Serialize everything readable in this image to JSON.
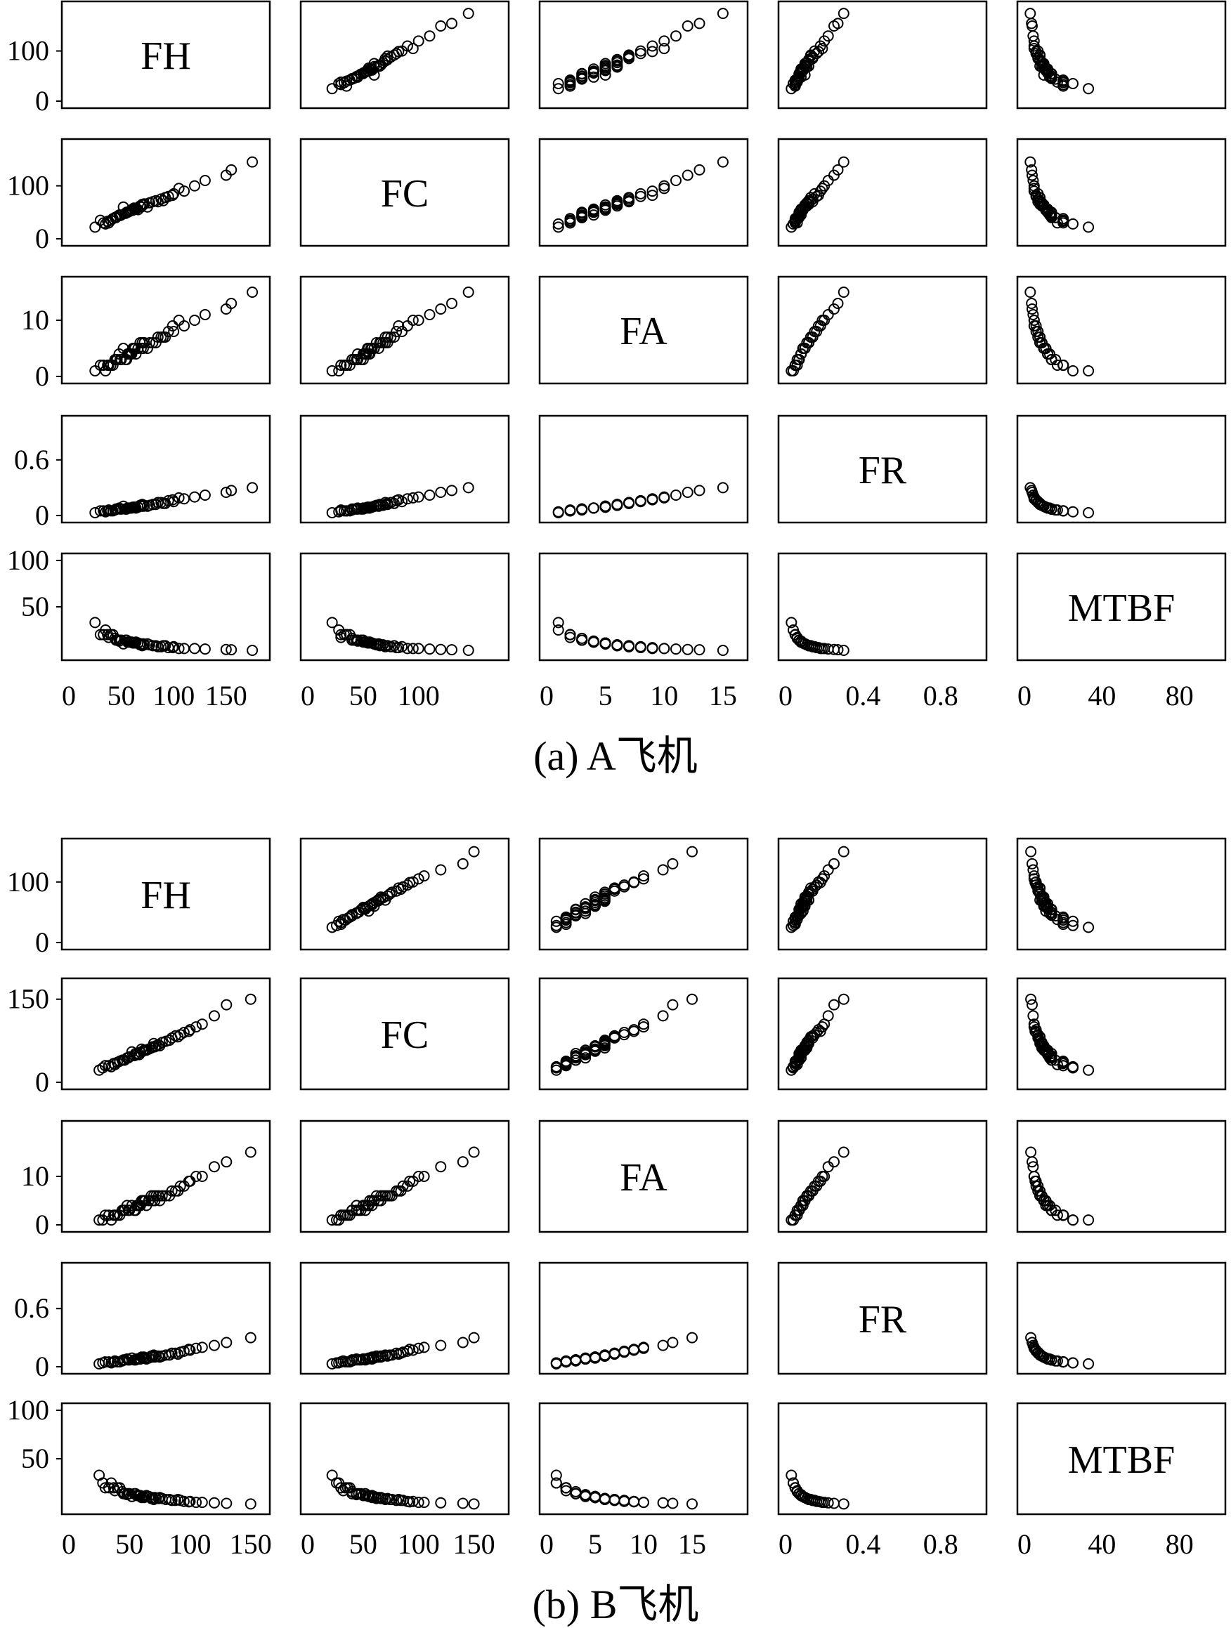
{
  "variables": [
    "FH",
    "FC",
    "FA",
    "FR",
    "MTBF"
  ],
  "panels": [
    {
      "caption": "(a) A飞机",
      "y_ticks": [
        [
          "0",
          "100"
        ],
        [
          "0",
          "100"
        ],
        [
          "0",
          "10"
        ],
        [
          "0",
          "0.6"
        ],
        [
          "50",
          "100"
        ]
      ],
      "x_ticks": [
        [
          "0",
          "50",
          "100",
          "150"
        ],
        [
          "0",
          "50",
          "100"
        ],
        [
          "0",
          "5",
          "10",
          "15"
        ],
        [
          "0",
          "0.4",
          "0.8"
        ],
        [
          "0",
          "40",
          "80"
        ]
      ]
    },
    {
      "caption": "(b) B飞机",
      "y_ticks": [
        [
          "0",
          "100"
        ],
        [
          "0",
          "150"
        ],
        [
          "0",
          "10"
        ],
        [
          "0",
          "0.6"
        ],
        [
          "50",
          "100"
        ]
      ],
      "x_ticks": [
        [
          "0",
          "50",
          "100",
          "150"
        ],
        [
          "0",
          "50",
          "100",
          "150"
        ],
        [
          "0",
          "5",
          "10",
          "15"
        ],
        [
          "0",
          "0.4",
          "0.8"
        ],
        [
          "0",
          "40",
          "80"
        ]
      ]
    }
  ],
  "chart_data": [
    {
      "type": "scatter",
      "subtype": "scatter-matrix",
      "variables": [
        "FH",
        "FC",
        "FA",
        "FR",
        "MTBF"
      ],
      "ranges": {
        "FH": [
          0,
          185
        ],
        "FC": [
          0,
          175
        ],
        "FA": [
          0,
          16.5
        ],
        "FR": [
          0,
          1.0
        ],
        "MTBF": [
          0,
          100
        ]
      },
      "tick_values": {
        "FH": [
          0,
          50,
          100,
          150
        ],
        "FC": [
          0,
          50,
          100
        ],
        "FA": [
          0,
          5,
          10,
          15
        ],
        "FR": [
          0,
          0.4,
          0.8
        ],
        "MTBF": [
          0,
          40,
          80
        ]
      },
      "y_tick_values": {
        "FH": [
          0,
          100
        ],
        "FC": [
          0,
          100
        ],
        "FA": [
          0,
          10
        ],
        "FR": [
          0,
          0.6
        ],
        "MTBF": [
          50,
          100
        ]
      },
      "approx_points": {
        "FH": [
          30,
          45,
          52,
          60,
          38,
          70,
          85,
          55,
          62,
          48,
          95,
          110,
          75,
          68,
          42,
          58,
          66,
          90,
          120,
          150,
          175,
          35,
          50,
          64,
          72,
          80,
          100,
          56,
          46,
          40,
          88,
          92,
          54,
          61,
          69,
          77,
          33,
          44,
          59,
          130,
          155,
          25,
          71,
          83,
          49,
          57,
          63,
          37,
          99,
          105
        ],
        "FC": [
          35,
          40,
          60,
          55,
          30,
          65,
          70,
          50,
          58,
          45,
          80,
          90,
          60,
          62,
          38,
          52,
          55,
          72,
          100,
          120,
          145,
          28,
          45,
          56,
          66,
          70,
          85,
          50,
          42,
          35,
          75,
          78,
          48,
          54,
          60,
          68,
          30,
          40,
          53,
          110,
          130,
          22,
          64,
          72,
          44,
          51,
          57,
          33,
          82,
          95
        ],
        "FA": [
          2,
          3,
          5,
          4,
          2,
          6,
          7,
          3,
          5,
          4,
          8,
          9,
          5,
          6,
          2,
          4,
          5,
          7,
          10,
          12,
          15,
          1,
          3,
          4,
          6,
          6,
          8,
          4,
          3,
          2,
          7,
          7,
          3,
          5,
          5,
          6,
          2,
          3,
          4,
          11,
          13,
          1,
          5,
          6,
          3,
          4,
          5,
          2,
          9,
          10
        ],
        "FR": [
          0.05,
          0.07,
          0.1,
          0.08,
          0.06,
          0.12,
          0.14,
          0.07,
          0.09,
          0.08,
          0.16,
          0.18,
          0.1,
          0.11,
          0.05,
          0.08,
          0.09,
          0.13,
          0.2,
          0.25,
          0.3,
          0.04,
          0.07,
          0.08,
          0.11,
          0.12,
          0.15,
          0.08,
          0.07,
          0.05,
          0.14,
          0.13,
          0.07,
          0.09,
          0.1,
          0.11,
          0.05,
          0.06,
          0.08,
          0.22,
          0.27,
          0.03,
          0.1,
          0.12,
          0.07,
          0.08,
          0.09,
          0.05,
          0.17,
          0.19
        ],
        "MTBF": [
          20,
          14,
          10,
          12,
          17,
          8,
          7,
          14,
          11,
          13,
          6,
          5,
          10,
          9,
          20,
          12,
          11,
          8,
          5,
          4,
          3,
          25,
          14,
          12,
          9,
          8,
          7,
          12,
          14,
          20,
          7,
          8,
          14,
          11,
          10,
          9,
          20,
          16,
          12,
          4.5,
          3.7,
          33,
          10,
          8,
          14,
          12,
          11,
          20,
          6,
          5
        ]
      }
    },
    {
      "type": "scatter",
      "subtype": "scatter-matrix",
      "variables": [
        "FH",
        "FC",
        "FA",
        "FR",
        "MTBF"
      ],
      "ranges": {
        "FH": [
          0,
          160
        ],
        "FC": [
          0,
          175
        ],
        "FA": [
          0,
          20
        ],
        "FR": [
          0,
          1.0
        ],
        "MTBF": [
          0,
          100
        ]
      },
      "tick_values": {
        "FH": [
          0,
          50,
          100,
          150
        ],
        "FC": [
          0,
          50,
          100,
          150
        ],
        "FA": [
          0,
          5,
          10,
          15
        ],
        "FR": [
          0,
          0.4,
          0.8
        ],
        "MTBF": [
          0,
          40,
          80
        ]
      },
      "y_tick_values": {
        "FH": [
          0,
          100
        ],
        "FC": [
          0,
          150
        ],
        "FA": [
          0,
          10
        ],
        "FR": [
          0,
          0.6
        ],
        "MTBF": [
          50,
          100
        ]
      },
      "approx_points": {
        "FH": [
          30,
          45,
          52,
          60,
          38,
          70,
          85,
          55,
          62,
          48,
          95,
          110,
          75,
          68,
          42,
          58,
          66,
          90,
          120,
          150,
          35,
          50,
          64,
          72,
          80,
          100,
          56,
          46,
          40,
          88,
          92,
          54,
          61,
          69,
          77,
          33,
          44,
          59,
          130,
          25,
          71,
          83,
          49,
          57,
          63,
          37,
          99,
          105,
          28,
          74
        ],
        "FC": [
          30,
          40,
          55,
          60,
          32,
          70,
          80,
          52,
          58,
          44,
          90,
          105,
          66,
          62,
          38,
          50,
          60,
          82,
          120,
          150,
          28,
          46,
          58,
          66,
          74,
          95,
          50,
          40,
          36,
          84,
          86,
          48,
          56,
          64,
          72,
          30,
          40,
          54,
          140,
          22,
          64,
          76,
          44,
          52,
          58,
          34,
          92,
          100,
          26,
          68
        ],
        "FA": [
          2,
          3,
          4,
          5,
          2,
          6,
          7,
          3,
          5,
          4,
          8,
          10,
          5,
          6,
          2,
          4,
          5,
          7,
          12,
          15,
          1,
          3,
          4,
          6,
          6,
          9,
          4,
          3,
          2,
          7,
          8,
          3,
          5,
          5,
          6,
          2,
          3,
          4,
          13,
          1,
          5,
          6,
          3,
          4,
          5,
          2,
          9,
          10,
          1,
          6
        ],
        "FR": [
          0.05,
          0.07,
          0.09,
          0.1,
          0.06,
          0.12,
          0.14,
          0.07,
          0.1,
          0.08,
          0.16,
          0.2,
          0.1,
          0.11,
          0.05,
          0.08,
          0.09,
          0.13,
          0.22,
          0.3,
          0.04,
          0.07,
          0.08,
          0.11,
          0.12,
          0.17,
          0.08,
          0.07,
          0.05,
          0.14,
          0.15,
          0.07,
          0.09,
          0.1,
          0.11,
          0.05,
          0.06,
          0.08,
          0.25,
          0.03,
          0.1,
          0.12,
          0.07,
          0.08,
          0.09,
          0.05,
          0.18,
          0.19,
          0.04,
          0.11
        ],
        "MTBF": [
          20,
          14,
          11,
          10,
          17,
          8,
          7,
          14,
          10,
          13,
          6,
          5,
          10,
          9,
          20,
          12,
          11,
          8,
          4.5,
          3.3,
          25,
          14,
          12,
          9,
          8,
          6,
          12,
          14,
          20,
          7,
          7,
          14,
          11,
          10,
          9,
          20,
          16,
          12,
          4,
          33,
          10,
          8,
          14,
          12,
          11,
          20,
          5.5,
          5,
          25,
          9
        ]
      }
    }
  ]
}
